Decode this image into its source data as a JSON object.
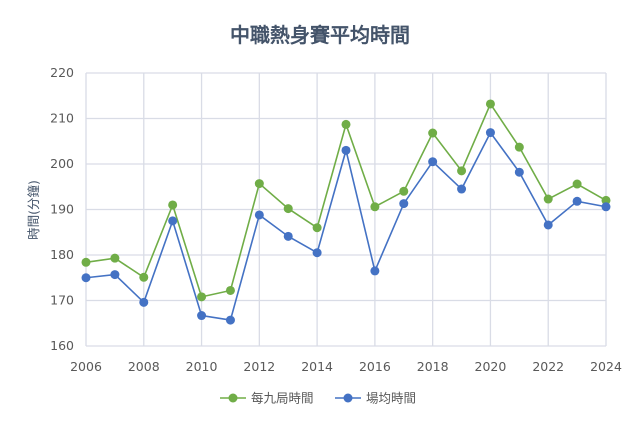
{
  "chart_data": {
    "type": "line",
    "title": "中職熱身賽平均時間",
    "xlabel": "",
    "ylabel": "時間(分鐘)",
    "xlim": [
      2006,
      2024
    ],
    "ylim": [
      160,
      220
    ],
    "x_ticks": [
      "2006",
      "2008",
      "2010",
      "2012",
      "2014",
      "2016",
      "2018",
      "2020",
      "2022",
      "2024"
    ],
    "y_ticks": [
      "160",
      "170",
      "180",
      "190",
      "200",
      "210",
      "220"
    ],
    "grid": true,
    "legend_position": "bottom",
    "x": [
      2006,
      2007,
      2008,
      2009,
      2010,
      2011,
      2012,
      2013,
      2014,
      2015,
      2016,
      2017,
      2018,
      2019,
      2020,
      2021,
      2022,
      2023,
      2024
    ],
    "series": [
      {
        "name": "每九局時間",
        "color": "#70ad47",
        "values": [
          178.4,
          179.3,
          175.1,
          191.0,
          170.8,
          172.2,
          195.7,
          190.2,
          186.0,
          208.7,
          190.6,
          194.0,
          206.8,
          198.5,
          213.2,
          203.7,
          192.3,
          195.6,
          192.0
        ]
      },
      {
        "name": "場均時間",
        "color": "#4472c4",
        "values": [
          175.0,
          175.7,
          169.6,
          187.5,
          166.7,
          165.7,
          188.8,
          184.1,
          180.5,
          203.0,
          176.5,
          191.3,
          200.5,
          194.5,
          206.9,
          198.2,
          186.6,
          191.8,
          190.6
        ]
      }
    ]
  }
}
